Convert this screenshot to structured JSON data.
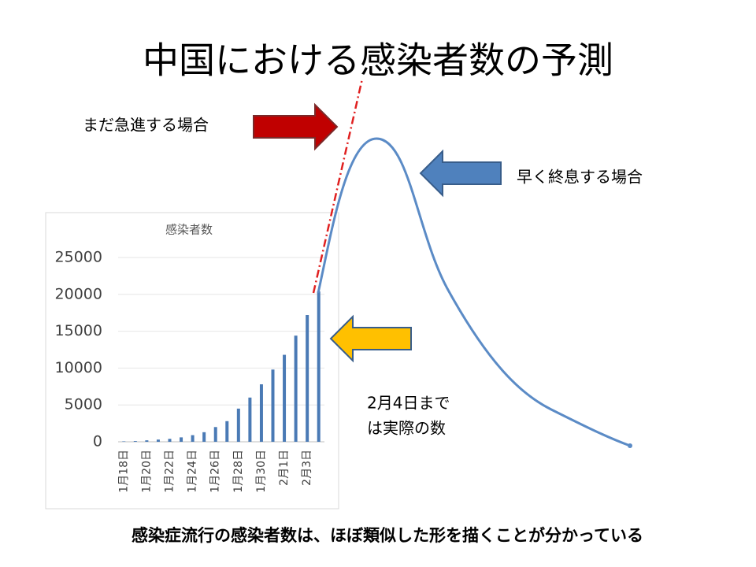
{
  "title": "中国における感染者数の予測",
  "annotations": {
    "rapid": "まだ急進する場合",
    "early_end": "早く終息する場合",
    "actual": [
      "2月4日まで",
      "は実際の数"
    ]
  },
  "footer": "感染症流行の感染者数は、ほぼ類似した形を描くことが分かっている",
  "chart_data": {
    "type": "bar",
    "title": "感染者数",
    "categories": [
      "1月18日",
      null,
      "1月20日",
      null,
      "1月22日",
      null,
      "1月24日",
      null,
      "1月26日",
      null,
      "1月28日",
      null,
      "1月30日",
      null,
      "2月1日",
      null,
      "2月3日",
      null
    ],
    "values": [
      60,
      100,
      200,
      300,
      400,
      600,
      900,
      1300,
      2000,
      2800,
      4500,
      6000,
      7800,
      9800,
      11800,
      14400,
      17200,
      20400
    ],
    "color": "#4a7ab5",
    "ylim": [
      0,
      25000
    ],
    "yticks": [
      0,
      5000,
      10000,
      15000,
      20000,
      25000
    ],
    "grid": true
  }
}
